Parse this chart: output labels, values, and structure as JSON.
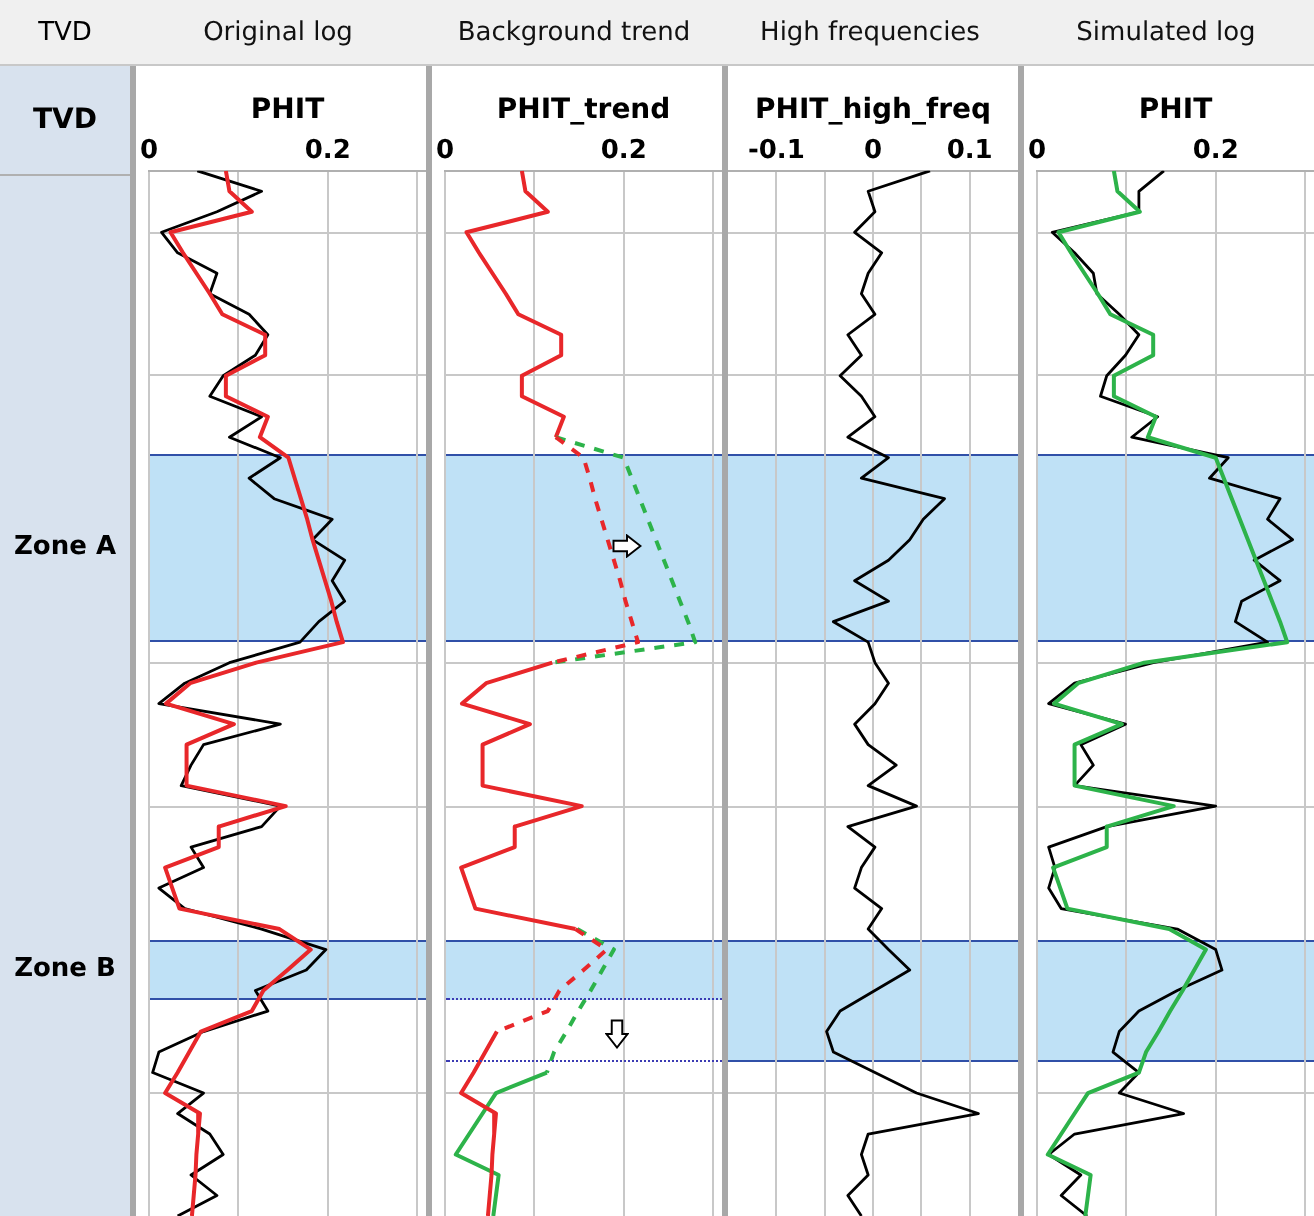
{
  "chart_data": [
    {
      "type": "line",
      "title": "Original log",
      "xlabel": "PHIT",
      "ylabel": "TVD",
      "annotations": [
        "TVD",
        "Zone A",
        "Zone B"
      ],
      "orientation": "horizontal",
      "tick_labels": "x",
      "grid": "x",
      "legend": false,
      "marker": "none",
      "categories": [
        null,
        null,
        null,
        null,
        null,
        null,
        null,
        null,
        null,
        null,
        null,
        null,
        null,
        null,
        null,
        null,
        null,
        null,
        null,
        null,
        null,
        null,
        null,
        null,
        null,
        null,
        null,
        null,
        null,
        null,
        null,
        null,
        null,
        null,
        null,
        null,
        null,
        null,
        null,
        null,
        null,
        null,
        null,
        null,
        null,
        null,
        null,
        null,
        null,
        null,
        null,
        null
      ],
      "xlim": [
        0,
        0.31
      ],
      "xticks": [
        0,
        {
          "value": 0.1,
          "label": null
        },
        0.2,
        {
          "value": 0.3,
          "label": null
        }
      ],
      "series": [
        {
          "color": "#000000",
          "values": [
            0.054,
            0.126,
            0.076,
            0.014,
            0.032,
            0.076,
            0.068,
            0.112,
            0.133,
            0.119,
            0.083,
            0.068,
            0.126,
            0.09,
            0.147,
            0.112,
            0.14,
            0.205,
            0.183,
            0.219,
            0.205,
            0.219,
            0.19,
            0.169,
            0.09,
            0.04,
            0.011,
            0.147,
            0.061,
            0.047,
            0.036,
            0.147,
            0.126,
            0.047,
            0.061,
            0.011,
            0.04,
            0.126,
            0.198,
            0.176,
            0.119,
            0.133,
            0.061,
            0.011,
            0.004,
            0.061,
            0.032,
            0.068,
            0.083,
            0.047,
            0.076,
            0.032
          ]
        },
        {
          "color": "#e8272a",
          "values": [
            0.086,
            0.09,
            0.115,
            0.024,
            0.038,
            0.053,
            0.068,
            0.082,
            0.13,
            0.13,
            0.086,
            0.086,
            0.133,
            0.124,
            0.156,
            0.163,
            0.17,
            0.177,
            0.183,
            0.19,
            0.197,
            0.204,
            0.21,
            0.217,
            0.12,
            0.046,
            0.019,
            0.095,
            0.042,
            0.042,
            0.042,
            0.153,
            0.078,
            0.078,
            0.018,
            0.026,
            0.034,
            0.146,
            0.181,
            0.155,
            0.128,
            0.115,
            0.058,
            0.045,
            0.032,
            0.018,
            0.057,
            0.055,
            0.053,
            0.052,
            0.05,
            0.048
          ]
        }
      ]
    },
    {
      "type": "line",
      "title": "Background trend",
      "xlabel": "PHIT_trend",
      "orientation": "horizontal",
      "tick_labels": "x",
      "grid": "x",
      "legend": false,
      "marker": "none",
      "categories": [
        null,
        null,
        null,
        null,
        null,
        null,
        null,
        null,
        null,
        null,
        null,
        null,
        null,
        null,
        null,
        null,
        null,
        null,
        null,
        null,
        null,
        null,
        null,
        null,
        null,
        null,
        null,
        null,
        null,
        null,
        null,
        null,
        null,
        null,
        null,
        null,
        null,
        null,
        null,
        null,
        null,
        null,
        null,
        null,
        null,
        null,
        null,
        null,
        null,
        null,
        null,
        null
      ],
      "xlim": [
        0,
        0.31
      ],
      "xticks": [
        0,
        {
          "value": 0.1,
          "label": null
        },
        0.2,
        {
          "value": 0.3,
          "label": null
        }
      ],
      "series": [
        {
          "color": "#2db34a",
          "line_style": "solid",
          "values": [
            null,
            null,
            null,
            null,
            null,
            null,
            null,
            null,
            null,
            null,
            null,
            null,
            null,
            null,
            null,
            null,
            null,
            null,
            null,
            null,
            null,
            null,
            null,
            null,
            null,
            null,
            null,
            null,
            null,
            null,
            null,
            null,
            null,
            null,
            null,
            null,
            null,
            null,
            null,
            null,
            null,
            null,
            null,
            null,
            0.114,
            0.057,
            0.042,
            0.027,
            0.012,
            0.06,
            0.057,
            0.054
          ]
        },
        {
          "color": "#e8272a",
          "line_style": "solid",
          "values": [
            0.086,
            0.09,
            0.115,
            0.024,
            0.038,
            0.053,
            0.068,
            0.082,
            0.13,
            0.13,
            0.086,
            0.086,
            0.133,
            0.124,
            null,
            null,
            null,
            null,
            null,
            null,
            null,
            null,
            null,
            null,
            0.12,
            0.046,
            0.019,
            0.095,
            0.042,
            0.042,
            0.042,
            0.153,
            0.078,
            0.078,
            0.018,
            0.026,
            0.034,
            0.146,
            null,
            null,
            null,
            null,
            0.058,
            0.045,
            0.032,
            0.018,
            0.057,
            0.055,
            0.053,
            0.052,
            0.05,
            0.048
          ]
        },
        {
          "color": "#2db34a",
          "line_style": "dashed",
          "values": [
            null,
            null,
            null,
            null,
            null,
            null,
            null,
            null,
            null,
            null,
            null,
            null,
            null,
            0.124,
            0.2,
            0.209,
            0.218,
            0.227,
            0.236,
            0.245,
            0.254,
            0.263,
            0.272,
            0.28,
            0.12,
            null,
            null,
            null,
            null,
            null,
            null,
            null,
            null,
            null,
            null,
            null,
            null,
            0.148,
            0.189,
            0.176,
            0.163,
            0.149,
            0.136,
            0.122,
            0.114,
            null,
            null,
            null,
            null,
            null,
            null,
            null
          ]
        },
        {
          "color": "#e8272a",
          "line_style": "dashed",
          "values": [
            null,
            null,
            null,
            null,
            null,
            null,
            null,
            null,
            null,
            null,
            null,
            null,
            null,
            0.124,
            0.155,
            0.162,
            0.168,
            0.175,
            0.182,
            0.189,
            0.196,
            0.202,
            0.209,
            0.216,
            0.12,
            null,
            null,
            null,
            null,
            null,
            null,
            null,
            null,
            null,
            null,
            null,
            null,
            0.146,
            0.181,
            0.155,
            0.128,
            0.115,
            0.058,
            null,
            null,
            null,
            null,
            null,
            null,
            null,
            null,
            null
          ]
        }
      ]
    },
    {
      "type": "line",
      "title": "High frequencies",
      "xlabel": "PHIT_high_freq",
      "orientation": "horizontal",
      "tick_labels": "x",
      "grid": "x",
      "legend": false,
      "marker": "none",
      "categories": [
        null,
        null,
        null,
        null,
        null,
        null,
        null,
        null,
        null,
        null,
        null,
        null,
        null,
        null,
        null,
        null,
        null,
        null,
        null,
        null,
        null,
        null,
        null,
        null,
        null,
        null,
        null,
        null,
        null,
        null,
        null,
        null,
        null,
        null,
        null,
        null,
        null,
        null,
        null,
        null,
        null,
        null,
        null,
        null,
        null,
        null,
        null,
        null,
        null,
        null,
        null,
        null
      ],
      "xlim": [
        -0.15,
        0.15
      ],
      "xticks": [
        -0.1,
        {
          "value": -0.05,
          "label": null
        },
        0,
        {
          "value": 0.05,
          "label": null
        },
        0.1
      ],
      "series": [
        {
          "color": "#000000",
          "values": [
            0.059,
            -0.005,
            0.002,
            -0.019,
            0.009,
            -0.005,
            -0.012,
            0.002,
            -0.026,
            -0.012,
            -0.034,
            -0.012,
            0.002,
            -0.026,
            0.016,
            -0.012,
            0.074,
            0.052,
            0.038,
            0.016,
            -0.019,
            0.016,
            -0.041,
            -0.005,
            0.002,
            0.016,
            0.002,
            -0.019,
            -0.005,
            0.024,
            -0.005,
            0.045,
            -0.026,
            0.002,
            -0.012,
            -0.019,
            0.009,
            -0.005,
            0.016,
            0.038,
            0.002,
            -0.034,
            -0.048,
            -0.041,
            0.002,
            0.045,
            0.109,
            -0.005,
            -0.012,
            -0.005,
            -0.026,
            -0.012
          ]
        }
      ]
    },
    {
      "type": "line",
      "title": "Simulated log",
      "xlabel": "PHIT",
      "orientation": "horizontal",
      "tick_labels": "x",
      "grid": "x",
      "legend": false,
      "marker": "none",
      "categories": [
        null,
        null,
        null,
        null,
        null,
        null,
        null,
        null,
        null,
        null,
        null,
        null,
        null,
        null,
        null,
        null,
        null,
        null,
        null,
        null,
        null,
        null,
        null,
        null,
        null,
        null,
        null,
        null,
        null,
        null,
        null,
        null,
        null,
        null,
        null,
        null,
        null,
        null,
        null,
        null,
        null,
        null,
        null,
        null,
        null,
        null,
        null,
        null,
        null,
        null,
        null,
        null
      ],
      "xlim": [
        0,
        0.31
      ],
      "xticks": [
        0,
        {
          "value": 0.1,
          "label": null
        },
        0.2,
        {
          "value": 0.3,
          "label": null
        }
      ],
      "series": [
        {
          "color": "#000000",
          "values": [
            0.142,
            0.114,
            0.114,
            0.017,
            0.042,
            0.063,
            0.067,
            0.092,
            0.114,
            0.099,
            0.078,
            0.071,
            0.135,
            0.106,
            0.214,
            0.193,
            0.272,
            0.258,
            0.286,
            0.243,
            0.272,
            0.229,
            0.222,
            0.258,
            0.13,
            0.042,
            0.013,
            0.099,
            0.049,
            0.063,
            0.042,
            0.2,
            0.078,
            0.013,
            0.02,
            0.013,
            0.027,
            0.157,
            0.2,
            0.207,
            0.157,
            0.114,
            0.092,
            0.085,
            0.114,
            0.092,
            0.164,
            0.042,
            0.013,
            0.049,
            0.027,
            0.056
          ]
        },
        {
          "color": "#2db34a",
          "values": [
            0.086,
            0.09,
            0.115,
            0.024,
            0.038,
            0.053,
            0.068,
            0.082,
            0.13,
            0.13,
            0.086,
            0.086,
            0.133,
            0.124,
            0.2,
            0.209,
            0.218,
            0.227,
            0.236,
            0.245,
            0.254,
            0.263,
            0.272,
            0.28,
            0.12,
            0.046,
            0.019,
            0.095,
            0.042,
            0.042,
            0.042,
            0.153,
            0.078,
            0.078,
            0.018,
            0.026,
            0.034,
            0.148,
            0.189,
            0.176,
            0.163,
            0.149,
            0.136,
            0.122,
            0.114,
            0.057,
            0.042,
            0.027,
            0.012,
            0.06,
            0.057,
            0.054
          ]
        }
      ]
    }
  ]
}
